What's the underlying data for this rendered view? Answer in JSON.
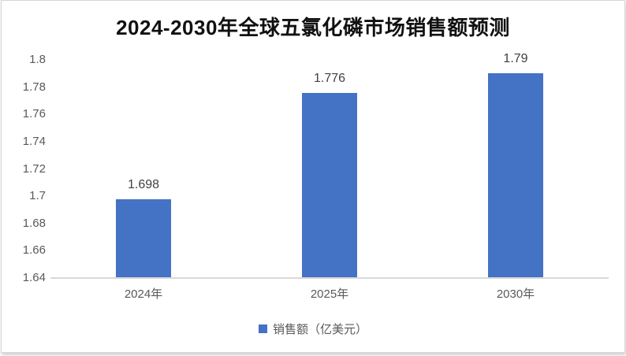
{
  "title": "2024-2030年全球五氯化磷市场销售额预测",
  "colors": {
    "bar": "#4472C4",
    "axis_line": "#d9d9d9",
    "tick_text": "#595959",
    "title_text": "#111111",
    "data_label_text": "#404040"
  },
  "legend": {
    "label": "销售额（亿美元）"
  },
  "chart_data": {
    "type": "bar",
    "title": "2024-2030年全球五氯化磷市场销售额预测",
    "categories": [
      "2024年",
      "2025年",
      "2030年"
    ],
    "series": [
      {
        "name": "销售额（亿美元）",
        "values": [
          1.698,
          1.776,
          1.79
        ]
      }
    ],
    "data_labels": [
      "1.698",
      "1.776",
      "1.79"
    ],
    "ylim": [
      1.64,
      1.8
    ],
    "ytick_labels": [
      "1.8",
      "1.78",
      "1.76",
      "1.74",
      "1.72",
      "1.7",
      "1.68",
      "1.66",
      "1.64"
    ],
    "yticks": [
      1.8,
      1.78,
      1.76,
      1.74,
      1.72,
      1.7,
      1.68,
      1.66,
      1.64
    ],
    "bar_color": "#4472C4",
    "grid": false,
    "legend_position": "bottom"
  }
}
